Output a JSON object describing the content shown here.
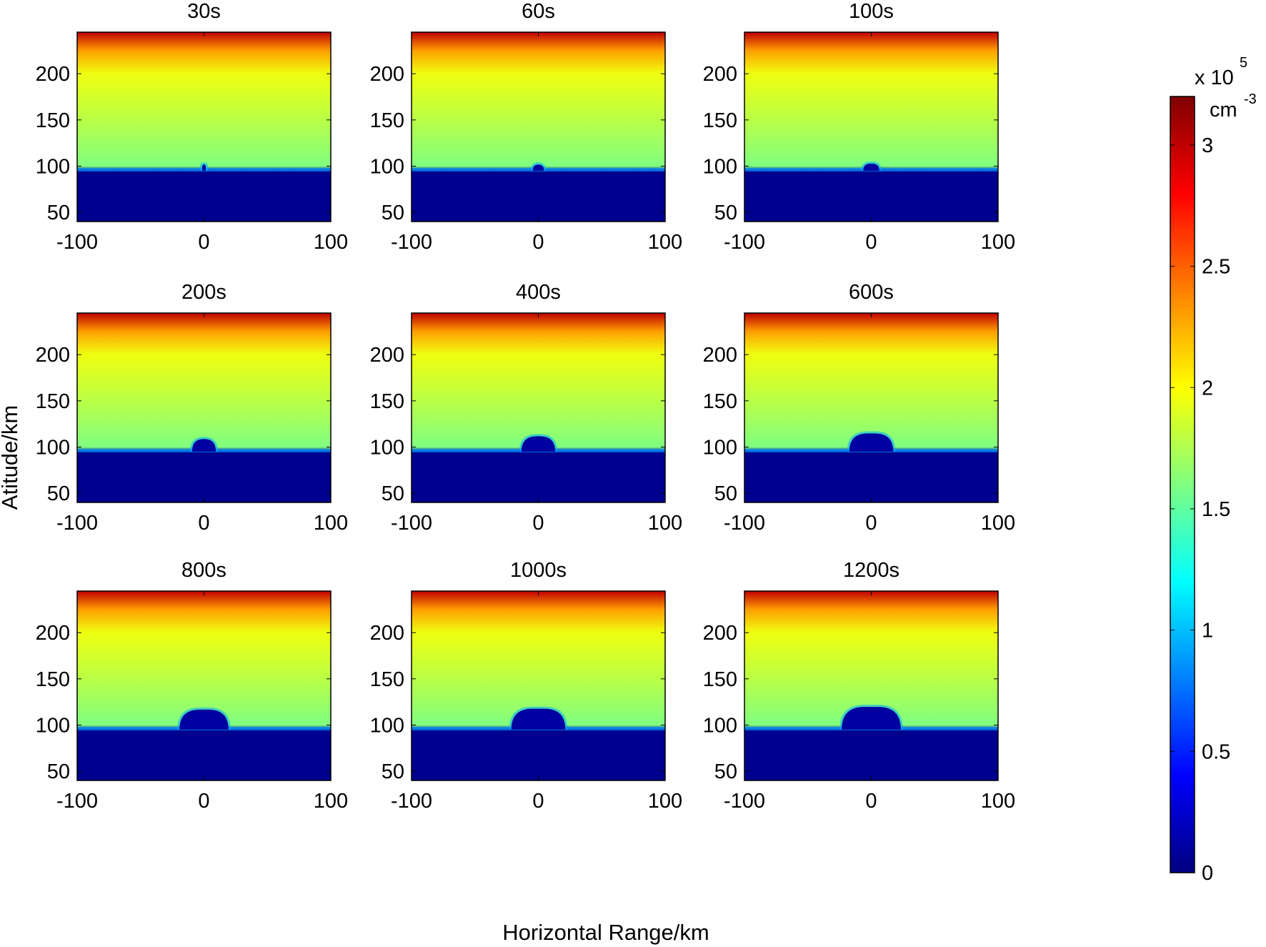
{
  "chart_data": {
    "type": "heatmap",
    "xlabel": "Horizontal Range/km",
    "ylabel": "Atitude/km",
    "xlim": [
      -100,
      100
    ],
    "ylim": [
      40,
      245
    ],
    "xticks": [
      "-100",
      "0",
      "100"
    ],
    "yticks": [
      "50",
      "100",
      "150",
      "200"
    ],
    "colormap": "jet",
    "colorbar": {
      "ticks": [
        "0",
        "0.5",
        "1",
        "1.5",
        "2",
        "2.5",
        "3"
      ],
      "lim": [
        0,
        3.2
      ],
      "scale_label": "x 10",
      "scale_exponent": "5",
      "unit_label": "cm",
      "unit_exponent": "-3"
    },
    "background_profile": {
      "altitude_km": [
        40,
        95,
        100,
        150,
        200,
        225,
        245
      ],
      "density_1e5_cm3": [
        0.05,
        0.05,
        1.6,
        1.78,
        1.95,
        2.3,
        3.0
      ]
    },
    "panels": [
      {
        "title": "30s",
        "hole_halfwidth_km": 3,
        "hole_top_km": 104
      },
      {
        "title": "60s",
        "hole_halfwidth_km": 6,
        "hole_top_km": 104
      },
      {
        "title": "100s",
        "hole_halfwidth_km": 8,
        "hole_top_km": 105
      },
      {
        "title": "200s",
        "hole_halfwidth_km": 11,
        "hole_top_km": 111
      },
      {
        "title": "400s",
        "hole_halfwidth_km": 15,
        "hole_top_km": 114
      },
      {
        "title": "600s",
        "hole_halfwidth_km": 19,
        "hole_top_km": 117
      },
      {
        "title": "800s",
        "hole_halfwidth_km": 21,
        "hole_top_km": 119
      },
      {
        "title": "1000s",
        "hole_halfwidth_km": 23,
        "hole_top_km": 120
      },
      {
        "title": "1200s",
        "hole_halfwidth_km": 25,
        "hole_top_km": 122
      }
    ]
  }
}
